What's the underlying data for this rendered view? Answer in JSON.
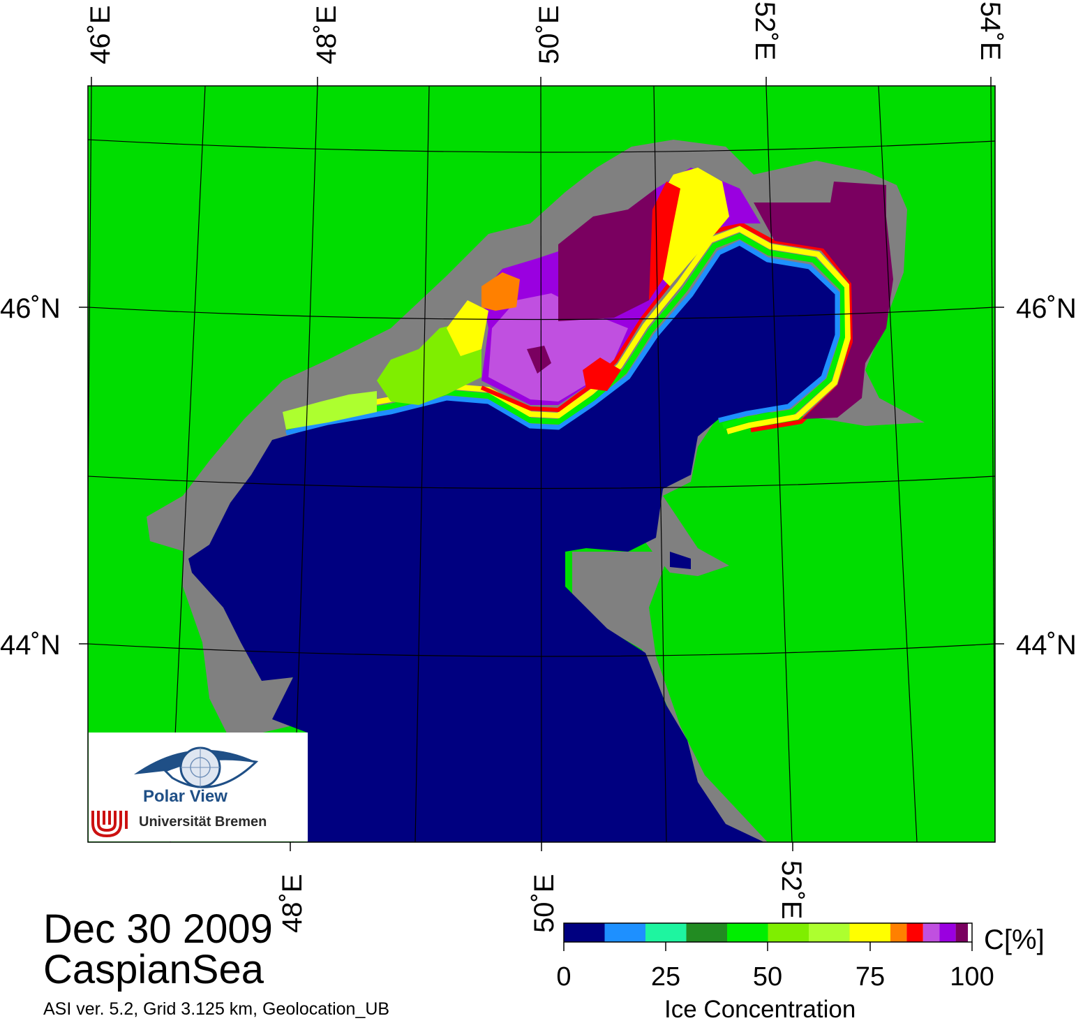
{
  "map": {
    "title": "Dec 30 2009",
    "region": "CaspianSea",
    "info": "ASI ver. 5.2,  Grid 3.125 km, Geolocation_UB",
    "lon_labels_top": [
      "46˚E",
      "48˚E",
      "50˚E",
      "52˚E",
      "54˚E"
    ],
    "lon_labels_bottom": [
      "48˚E",
      "50˚E",
      "52˚E"
    ],
    "lat_labels_left": [
      "46˚N",
      "44˚N"
    ],
    "lat_labels_right": [
      "46˚N",
      "44˚N"
    ],
    "colors": {
      "land": "#00dd00",
      "coast": "#808080",
      "water": "#000080",
      "grid": "#000000"
    }
  },
  "logo": {
    "name": "Polar View",
    "institution": "Universität Bremen",
    "eye_color": "#1f4f86",
    "mark_color": "#cc1111"
  },
  "colorbar": {
    "title": "Ice Concentration",
    "unit": "C[%]",
    "ticks": [
      "0",
      "25",
      "50",
      "75",
      "100"
    ],
    "bins": [
      {
        "from": 0,
        "to": 10,
        "color": "#000080"
      },
      {
        "from": 10,
        "to": 20,
        "color": "#1e90ff"
      },
      {
        "from": 20,
        "to": 30,
        "color": "#1ef5a0"
      },
      {
        "from": 30,
        "to": 40,
        "color": "#228b22"
      },
      {
        "from": 40,
        "to": 50,
        "color": "#00ee00"
      },
      {
        "from": 50,
        "to": 60,
        "color": "#7fee00"
      },
      {
        "from": 60,
        "to": 70,
        "color": "#adff2f"
      },
      {
        "from": 70,
        "to": 80,
        "color": "#ffff00"
      },
      {
        "from": 80,
        "to": 84,
        "color": "#ff8000"
      },
      {
        "from": 84,
        "to": 88,
        "color": "#ff0000"
      },
      {
        "from": 88,
        "to": 92,
        "color": "#c050e0"
      },
      {
        "from": 92,
        "to": 96,
        "color": "#9a00e0"
      },
      {
        "from": 96,
        "to": 99,
        "color": "#7a0060"
      },
      {
        "from": 99,
        "to": 100,
        "color": "#ffffff"
      }
    ]
  }
}
